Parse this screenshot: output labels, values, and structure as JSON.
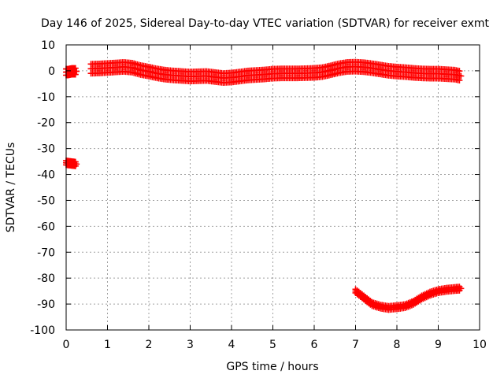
{
  "chart_data": {
    "type": "scatter",
    "title": "Day 146 of 2025, Sidereal Day-to-day VTEC variation (SDTVAR) for receiver exmt",
    "xlabel": "GPS time / hours",
    "ylabel": "SDTVAR / TECUs",
    "xlim": [
      0,
      10
    ],
    "ylim": [
      -100,
      10
    ],
    "xticks": [
      0,
      1,
      2,
      3,
      4,
      5,
      6,
      7,
      8,
      9,
      10
    ],
    "yticks": [
      10,
      0,
      -10,
      -20,
      -30,
      -40,
      -50,
      -60,
      -70,
      -80,
      -90,
      -100
    ],
    "grid": true,
    "marker": "plus",
    "series": [
      {
        "color": "#ff0000",
        "segments": [
          {
            "x": [
              0.0,
              0.05,
              0.1,
              0.15,
              0.2,
              0.25
            ],
            "y": [
              -0.5,
              -0.5,
              -0.3,
              -0.2,
              -0.2,
              -0.2
            ],
            "spread": 1.2
          },
          {
            "x": [
              0.0,
              0.05,
              0.1,
              0.15,
              0.2,
              0.25
            ],
            "y": [
              -35.5,
              -35.6,
              -35.7,
              -35.8,
              -35.9,
              -36.0
            ],
            "spread": 0.8
          },
          {
            "x": [
              0.6,
              0.8,
              1.0,
              1.2,
              1.4,
              1.6,
              1.8,
              2.0,
              2.2,
              2.4,
              2.6,
              2.8,
              3.0,
              3.2,
              3.4,
              3.6,
              3.8,
              4.0,
              4.2,
              4.4,
              4.6,
              4.8,
              5.0,
              5.2,
              5.4,
              5.6,
              5.8,
              6.0,
              6.2,
              6.4,
              6.6,
              6.8,
              7.0,
              7.2,
              7.4,
              7.6,
              7.8,
              8.0,
              8.2,
              8.4,
              8.6,
              8.8,
              9.0,
              9.2,
              9.4,
              9.55
            ],
            "y": [
              0.8,
              0.9,
              1.1,
              1.3,
              1.5,
              1.2,
              0.3,
              -0.3,
              -1.0,
              -1.5,
              -1.8,
              -2.0,
              -2.2,
              -2.1,
              -2.0,
              -2.4,
              -2.8,
              -2.6,
              -2.2,
              -1.8,
              -1.6,
              -1.4,
              -1.1,
              -1.0,
              -1.0,
              -1.0,
              -0.9,
              -0.8,
              -0.5,
              0.2,
              1.0,
              1.5,
              1.6,
              1.4,
              1.0,
              0.5,
              0.0,
              -0.3,
              -0.5,
              -0.8,
              -1.0,
              -1.1,
              -1.1,
              -1.3,
              -1.5,
              -2.0
            ],
            "spread": 1.8
          },
          {
            "x": [
              7.0,
              7.2,
              7.4,
              7.6,
              7.8,
              8.0,
              8.2,
              8.4,
              8.6,
              8.8,
              9.0,
              9.2,
              9.4,
              9.55
            ],
            "y": [
              -85.0,
              -87.5,
              -90.0,
              -91.0,
              -91.5,
              -91.2,
              -90.8,
              -89.5,
              -87.5,
              -86.0,
              -85.0,
              -84.5,
              -84.2,
              -84.0
            ],
            "spread": 0.7
          }
        ]
      }
    ]
  }
}
